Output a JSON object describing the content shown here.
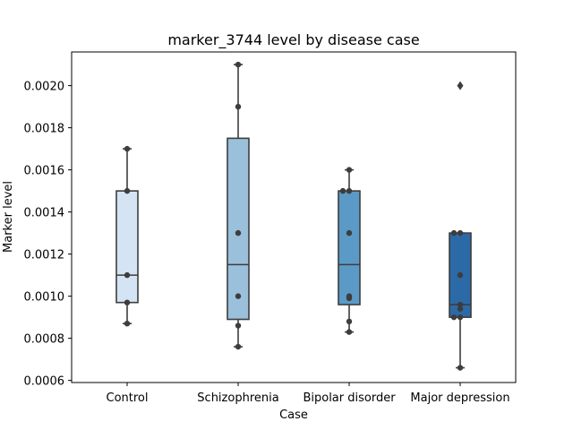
{
  "chart_data": {
    "type": "box",
    "title": "marker_3744 level by disease case",
    "xlabel": "Case",
    "ylabel": "Marker level",
    "ylim": [
      0.00059,
      0.00216
    ],
    "y_ticks": [
      "0.0006",
      "0.0008",
      "0.0010",
      "0.0012",
      "0.0014",
      "0.0016",
      "0.0018",
      "0.0020"
    ],
    "categories": [
      "Control",
      "Schizophrenia",
      "Bipolar disorder",
      "Major depression"
    ],
    "boxes": [
      {
        "category": "Control",
        "color": "#d4e4f4",
        "whisker_low": 0.00087,
        "q1": 0.00097,
        "median": 0.0011,
        "q3": 0.0015,
        "whisker_high": 0.0017,
        "outliers": [],
        "points": [
          0.0017,
          0.0015,
          0.0011,
          0.00097,
          0.00087
        ]
      },
      {
        "category": "Schizophrenia",
        "color": "#9ac0db",
        "whisker_low": 0.00076,
        "q1": 0.00089,
        "median": 0.00115,
        "q3": 0.00175,
        "whisker_high": 0.0021,
        "outliers": [],
        "points": [
          0.0021,
          0.0019,
          0.0013,
          0.001,
          0.00086,
          0.00076
        ]
      },
      {
        "category": "Bipolar disorder",
        "color": "#5b9ac7",
        "whisker_low": 0.00083,
        "q1": 0.00096,
        "median": 0.00115,
        "q3": 0.0015,
        "whisker_high": 0.0016,
        "outliers": [],
        "points": [
          0.0016,
          0.0015,
          0.0015,
          0.0013,
          0.001,
          0.00099,
          0.00088,
          0.00083
        ]
      },
      {
        "category": "Major depression",
        "color": "#2c6aa7",
        "whisker_low": 0.00066,
        "q1": 0.0009,
        "median": 0.00096,
        "q3": 0.0013,
        "whisker_high": 0.0013,
        "outliers": [
          0.002
        ],
        "points": [
          0.0013,
          0.0013,
          0.0011,
          0.00096,
          0.00094,
          0.0009,
          0.0009,
          0.00066
        ]
      }
    ],
    "grid": false,
    "legend": "none"
  }
}
